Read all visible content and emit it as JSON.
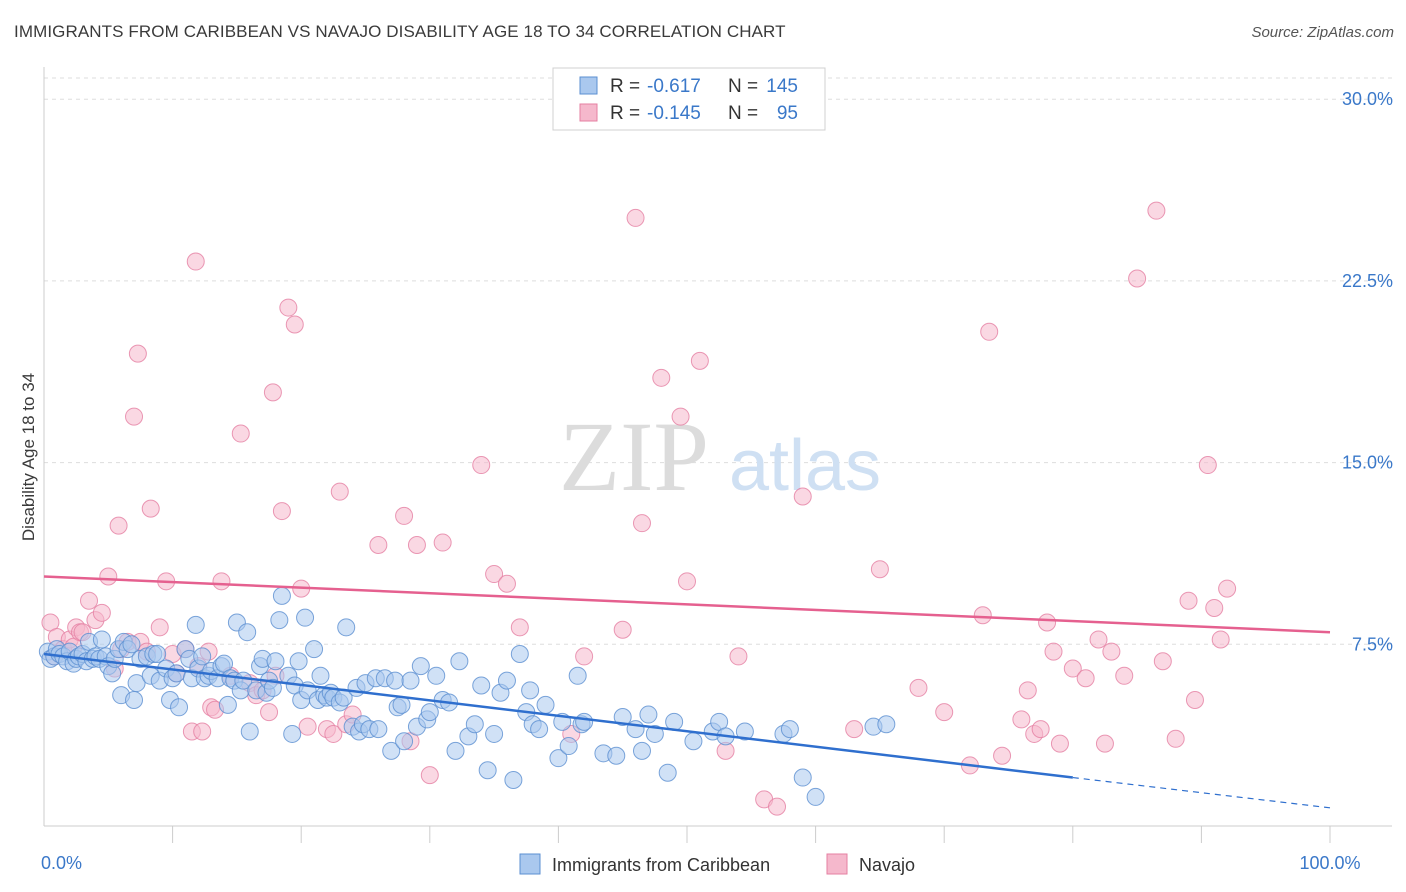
{
  "header": {
    "title": "IMMIGRANTS FROM CARIBBEAN VS NAVAJO DISABILITY AGE 18 TO 34 CORRELATION CHART",
    "source": "Source: ZipAtlas.com"
  },
  "watermark": {
    "zip": "ZIP",
    "atlas": "atlas"
  },
  "colors": {
    "blue_fill": "#aac8ee",
    "blue_edge": "#5b8fd1",
    "blue_line": "#2f6fce",
    "pink_fill": "#f5b8cc",
    "pink_edge": "#e57fa2",
    "pink_line": "#e5608f",
    "axis_label": "#3a78c9",
    "grid": "#dddddd"
  },
  "chart_data": {
    "type": "scatter",
    "xlabel": "",
    "ylabel": "Disability Age 18 to 34",
    "xlim": [
      0,
      100
    ],
    "ylim": [
      0,
      31
    ],
    "x_ticks": [
      {
        "value": 0,
        "label": "0.0%"
      },
      {
        "value": 100,
        "label": "100.0%"
      }
    ],
    "x_minor_ticks": [
      10,
      20,
      30,
      40,
      50,
      60,
      70,
      80,
      90
    ],
    "y_ticks": [
      {
        "value": 7.5,
        "label": "7.5%"
      },
      {
        "value": 15.0,
        "label": "15.0%"
      },
      {
        "value": 22.5,
        "label": "22.5%"
      },
      {
        "value": 30.0,
        "label": "30.0%"
      }
    ],
    "grid": true,
    "legend_top": {
      "position": "top-center",
      "rows": [
        {
          "r_label": "R =",
          "r_value": "-0.617",
          "n_label": "N =",
          "n_value": "145"
        },
        {
          "r_label": "R =",
          "r_value": "-0.145",
          "n_label": "N =",
          "n_value": "95"
        }
      ]
    },
    "legend_bottom": [
      "Immigrants from Caribbean",
      "Navajo"
    ],
    "series": [
      {
        "name": "Immigrants from Caribbean",
        "color": "#5b8fd1",
        "trend": {
          "x0": 0,
          "y0": 7.1,
          "x1": 80,
          "y1": 2.0,
          "dashed_to_x": 100,
          "dashed_to_y": 0.75
        },
        "points": [
          [
            0.3,
            7.2
          ],
          [
            0.5,
            6.9
          ],
          [
            0.8,
            7.0
          ],
          [
            1.0,
            7.3
          ],
          [
            1.2,
            7.1
          ],
          [
            1.5,
            7.0
          ],
          [
            1.8,
            6.8
          ],
          [
            2.0,
            7.2
          ],
          [
            2.3,
            6.7
          ],
          [
            2.5,
            6.9
          ],
          [
            2.7,
            7.0
          ],
          [
            3.0,
            7.1
          ],
          [
            3.3,
            6.8
          ],
          [
            3.5,
            7.6
          ],
          [
            3.8,
            6.9
          ],
          [
            4.0,
            7.0
          ],
          [
            4.3,
            6.9
          ],
          [
            4.5,
            7.7
          ],
          [
            4.8,
            7.0
          ],
          [
            5.0,
            6.6
          ],
          [
            5.3,
            6.3
          ],
          [
            5.5,
            6.9
          ],
          [
            5.8,
            7.3
          ],
          [
            6.0,
            5.4
          ],
          [
            6.2,
            7.6
          ],
          [
            6.5,
            7.3
          ],
          [
            6.8,
            7.5
          ],
          [
            7.0,
            5.2
          ],
          [
            7.2,
            5.9
          ],
          [
            7.5,
            6.9
          ],
          [
            8.0,
            7.0
          ],
          [
            8.3,
            6.2
          ],
          [
            8.5,
            7.1
          ],
          [
            8.8,
            7.1
          ],
          [
            9.0,
            6.0
          ],
          [
            9.5,
            6.5
          ],
          [
            9.8,
            5.2
          ],
          [
            10.0,
            6.1
          ],
          [
            10.3,
            6.3
          ],
          [
            10.5,
            4.9
          ],
          [
            11.0,
            7.3
          ],
          [
            11.3,
            6.9
          ],
          [
            11.5,
            6.1
          ],
          [
            11.8,
            8.3
          ],
          [
            12.0,
            6.5
          ],
          [
            12.3,
            7.0
          ],
          [
            12.5,
            6.1
          ],
          [
            12.8,
            6.2
          ],
          [
            13.0,
            6.4
          ],
          [
            13.5,
            6.1
          ],
          [
            13.8,
            6.6
          ],
          [
            14.0,
            6.7
          ],
          [
            14.3,
            5.0
          ],
          [
            14.5,
            6.1
          ],
          [
            14.8,
            6.0
          ],
          [
            15.0,
            8.4
          ],
          [
            15.3,
            5.6
          ],
          [
            15.5,
            6.0
          ],
          [
            15.8,
            8.0
          ],
          [
            16.0,
            3.9
          ],
          [
            16.5,
            5.6
          ],
          [
            16.8,
            6.6
          ],
          [
            17.0,
            6.9
          ],
          [
            17.3,
            5.5
          ],
          [
            17.5,
            6.0
          ],
          [
            17.8,
            5.7
          ],
          [
            18.0,
            6.8
          ],
          [
            18.3,
            8.5
          ],
          [
            18.5,
            9.5
          ],
          [
            19.0,
            6.2
          ],
          [
            19.3,
            3.8
          ],
          [
            19.5,
            5.8
          ],
          [
            19.8,
            6.8
          ],
          [
            20.0,
            5.2
          ],
          [
            20.3,
            8.6
          ],
          [
            20.5,
            5.6
          ],
          [
            21.0,
            7.3
          ],
          [
            21.3,
            5.2
          ],
          [
            21.5,
            6.2
          ],
          [
            21.8,
            5.4
          ],
          [
            22.0,
            5.3
          ],
          [
            22.3,
            5.5
          ],
          [
            22.5,
            5.3
          ],
          [
            23.0,
            5.1
          ],
          [
            23.3,
            5.3
          ],
          [
            23.5,
            8.2
          ],
          [
            24.0,
            4.1
          ],
          [
            24.3,
            5.7
          ],
          [
            24.5,
            3.9
          ],
          [
            24.8,
            4.2
          ],
          [
            25.0,
            5.9
          ],
          [
            25.3,
            4.0
          ],
          [
            25.8,
            6.1
          ],
          [
            26.0,
            4.0
          ],
          [
            26.5,
            6.1
          ],
          [
            27.0,
            3.1
          ],
          [
            27.3,
            6.0
          ],
          [
            27.5,
            4.9
          ],
          [
            27.8,
            5.0
          ],
          [
            28.0,
            3.5
          ],
          [
            28.5,
            6.0
          ],
          [
            29.0,
            4.1
          ],
          [
            29.3,
            6.6
          ],
          [
            29.8,
            4.4
          ],
          [
            30.0,
            4.7
          ],
          [
            30.5,
            6.2
          ],
          [
            31.0,
            5.2
          ],
          [
            31.5,
            5.1
          ],
          [
            32.0,
            3.1
          ],
          [
            32.3,
            6.8
          ],
          [
            33.0,
            3.7
          ],
          [
            33.5,
            4.2
          ],
          [
            34.0,
            5.8
          ],
          [
            34.5,
            2.3
          ],
          [
            35.0,
            3.8
          ],
          [
            35.5,
            5.5
          ],
          [
            36.0,
            6.0
          ],
          [
            36.5,
            1.9
          ],
          [
            37.0,
            7.1
          ],
          [
            37.5,
            4.7
          ],
          [
            37.8,
            5.6
          ],
          [
            38.0,
            4.2
          ],
          [
            38.5,
            4.0
          ],
          [
            39.0,
            5.0
          ],
          [
            40.0,
            2.8
          ],
          [
            40.3,
            4.3
          ],
          [
            40.8,
            3.3
          ],
          [
            41.5,
            6.2
          ],
          [
            41.8,
            4.2
          ],
          [
            42.0,
            4.3
          ],
          [
            43.5,
            3.0
          ],
          [
            44.5,
            2.9
          ],
          [
            45.0,
            4.5
          ],
          [
            46.0,
            4.0
          ],
          [
            46.5,
            3.1
          ],
          [
            47.0,
            4.6
          ],
          [
            47.5,
            3.8
          ],
          [
            48.5,
            2.2
          ],
          [
            49.0,
            4.3
          ],
          [
            50.5,
            3.5
          ],
          [
            52.0,
            3.9
          ],
          [
            52.5,
            4.3
          ],
          [
            53.0,
            3.7
          ],
          [
            54.5,
            3.9
          ],
          [
            57.5,
            3.8
          ],
          [
            58.0,
            4.0
          ],
          [
            59.0,
            2.0
          ],
          [
            60.0,
            1.2
          ],
          [
            64.5,
            4.1
          ],
          [
            65.5,
            4.2
          ]
        ]
      },
      {
        "name": "Navajo",
        "color": "#e57fa2",
        "trend": {
          "x0": 0,
          "y0": 10.3,
          "x1": 100,
          "y1": 8.0
        },
        "points": [
          [
            0.5,
            8.4
          ],
          [
            0.8,
            7.0
          ],
          [
            1.0,
            7.8
          ],
          [
            1.5,
            7.3
          ],
          [
            2.0,
            7.7
          ],
          [
            2.3,
            7.4
          ],
          [
            2.5,
            8.2
          ],
          [
            2.8,
            8.0
          ],
          [
            3.0,
            8.0
          ],
          [
            3.5,
            9.3
          ],
          [
            4.0,
            8.5
          ],
          [
            4.5,
            8.8
          ],
          [
            5.0,
            10.3
          ],
          [
            5.5,
            6.5
          ],
          [
            5.8,
            12.4
          ],
          [
            6.0,
            7.3
          ],
          [
            6.5,
            7.6
          ],
          [
            7.0,
            16.9
          ],
          [
            7.3,
            19.5
          ],
          [
            7.5,
            7.6
          ],
          [
            8.0,
            7.2
          ],
          [
            8.3,
            13.1
          ],
          [
            9.0,
            8.2
          ],
          [
            9.5,
            10.1
          ],
          [
            10.0,
            7.1
          ],
          [
            10.3,
            6.3
          ],
          [
            11.0,
            7.3
          ],
          [
            11.5,
            3.9
          ],
          [
            11.8,
            23.3
          ],
          [
            12.0,
            6.6
          ],
          [
            12.3,
            3.9
          ],
          [
            12.8,
            7.2
          ],
          [
            13.0,
            4.9
          ],
          [
            13.3,
            4.8
          ],
          [
            13.8,
            10.1
          ],
          [
            14.5,
            6.2
          ],
          [
            15.3,
            16.2
          ],
          [
            16.0,
            5.9
          ],
          [
            16.5,
            5.4
          ],
          [
            17.0,
            5.6
          ],
          [
            17.5,
            4.7
          ],
          [
            17.8,
            17.9
          ],
          [
            18.0,
            6.2
          ],
          [
            18.5,
            13.0
          ],
          [
            19.0,
            21.4
          ],
          [
            19.5,
            20.7
          ],
          [
            20.0,
            9.8
          ],
          [
            20.5,
            4.1
          ],
          [
            22.0,
            4.0
          ],
          [
            22.5,
            3.8
          ],
          [
            23.0,
            13.8
          ],
          [
            23.5,
            4.2
          ],
          [
            24.0,
            4.6
          ],
          [
            26.0,
            11.6
          ],
          [
            28.0,
            12.8
          ],
          [
            28.5,
            3.5
          ],
          [
            29.0,
            11.6
          ],
          [
            30.0,
            2.1
          ],
          [
            31.0,
            11.7
          ],
          [
            34.0,
            14.9
          ],
          [
            35.0,
            10.4
          ],
          [
            36.0,
            10.0
          ],
          [
            37.0,
            8.2
          ],
          [
            41.0,
            3.8
          ],
          [
            42.0,
            7.0
          ],
          [
            45.0,
            8.1
          ],
          [
            46.0,
            25.1
          ],
          [
            46.5,
            12.5
          ],
          [
            48.0,
            18.5
          ],
          [
            49.5,
            16.9
          ],
          [
            50.0,
            10.1
          ],
          [
            51.0,
            19.2
          ],
          [
            53.0,
            3.1
          ],
          [
            54.0,
            7.0
          ],
          [
            56.0,
            1.1
          ],
          [
            57.0,
            0.8
          ],
          [
            59.0,
            13.6
          ],
          [
            63.0,
            4.0
          ],
          [
            65.0,
            10.6
          ],
          [
            68.0,
            5.7
          ],
          [
            70.0,
            4.7
          ],
          [
            72.0,
            2.5
          ],
          [
            73.0,
            8.7
          ],
          [
            73.5,
            20.4
          ],
          [
            74.5,
            2.9
          ],
          [
            76.0,
            4.4
          ],
          [
            76.5,
            5.6
          ],
          [
            77.0,
            3.8
          ],
          [
            77.5,
            4.0
          ],
          [
            78.0,
            8.4
          ],
          [
            78.5,
            7.2
          ],
          [
            79.0,
            3.4
          ],
          [
            80.0,
            6.5
          ],
          [
            81.0,
            6.1
          ],
          [
            82.0,
            7.7
          ],
          [
            82.5,
            3.4
          ],
          [
            83.0,
            7.2
          ],
          [
            84.0,
            6.2
          ],
          [
            85.0,
            22.6
          ],
          [
            86.5,
            25.4
          ],
          [
            87.0,
            6.8
          ],
          [
            88.0,
            3.6
          ],
          [
            89.0,
            9.3
          ],
          [
            89.5,
            5.2
          ],
          [
            90.5,
            14.9
          ],
          [
            91.0,
            9.0
          ],
          [
            91.5,
            7.7
          ],
          [
            92.0,
            9.8
          ]
        ]
      }
    ]
  }
}
